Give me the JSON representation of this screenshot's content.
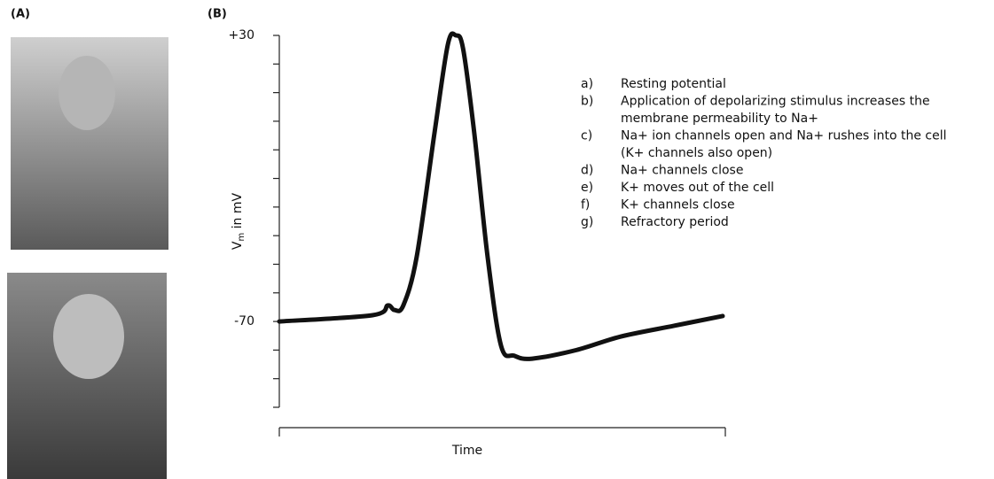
{
  "panels": [
    "(A)",
    "(B)"
  ],
  "chart_data": {
    "type": "line",
    "ylabel": [
      "V",
      "m",
      " in mV"
    ],
    "xlabel": "Time",
    "xlim": [
      0,
      100
    ],
    "ylim": [
      -100,
      30
    ],
    "yticks": [
      {
        "value": 30,
        "label": "+30"
      },
      {
        "value": -70,
        "label": "-70"
      }
    ],
    "yminorticks": [
      30,
      20,
      10,
      0,
      -10,
      -20,
      -30,
      -40,
      -50,
      -60,
      -70,
      -80,
      -90,
      -100
    ],
    "series": [
      {
        "color": "#111111",
        "x": [
          0,
          20.9,
          24.3,
          25.8,
          27.8,
          30.8,
          34.8,
          37.8,
          39.6,
          41.2,
          43.7,
          46.7,
          49.7,
          52.7,
          56.7,
          66.6,
          76.5,
          88.5,
          99.4
        ],
        "values": [
          -70,
          -67.8,
          -64.4,
          -66,
          -64.4,
          -47.4,
          -4,
          26.9,
          30,
          25.4,
          -4,
          -47.4,
          -78.4,
          -82,
          -83,
          -80,
          -75.3,
          -71.5,
          -68.1
        ]
      }
    ],
    "annotations": [
      {
        "letter": "a)",
        "lines": [
          "Resting potential"
        ]
      },
      {
        "letter": "b)",
        "lines": [
          "Application of depolarizing stimulus increases the",
          "membrane permeability to Na+"
        ]
      },
      {
        "letter": "c)",
        "lines": [
          "Na+ ion channels open and Na+ rushes into the cell",
          "(K+ channels also open)"
        ]
      },
      {
        "letter": "d)",
        "lines": [
          "Na+ channels close"
        ]
      },
      {
        "letter": "e)",
        "lines": [
          "K+ moves out of the cell"
        ]
      },
      {
        "letter": "f)",
        "lines": [
          "K+ channels close"
        ]
      },
      {
        "letter": "g)",
        "lines": [
          "Refractory period"
        ]
      }
    ]
  }
}
